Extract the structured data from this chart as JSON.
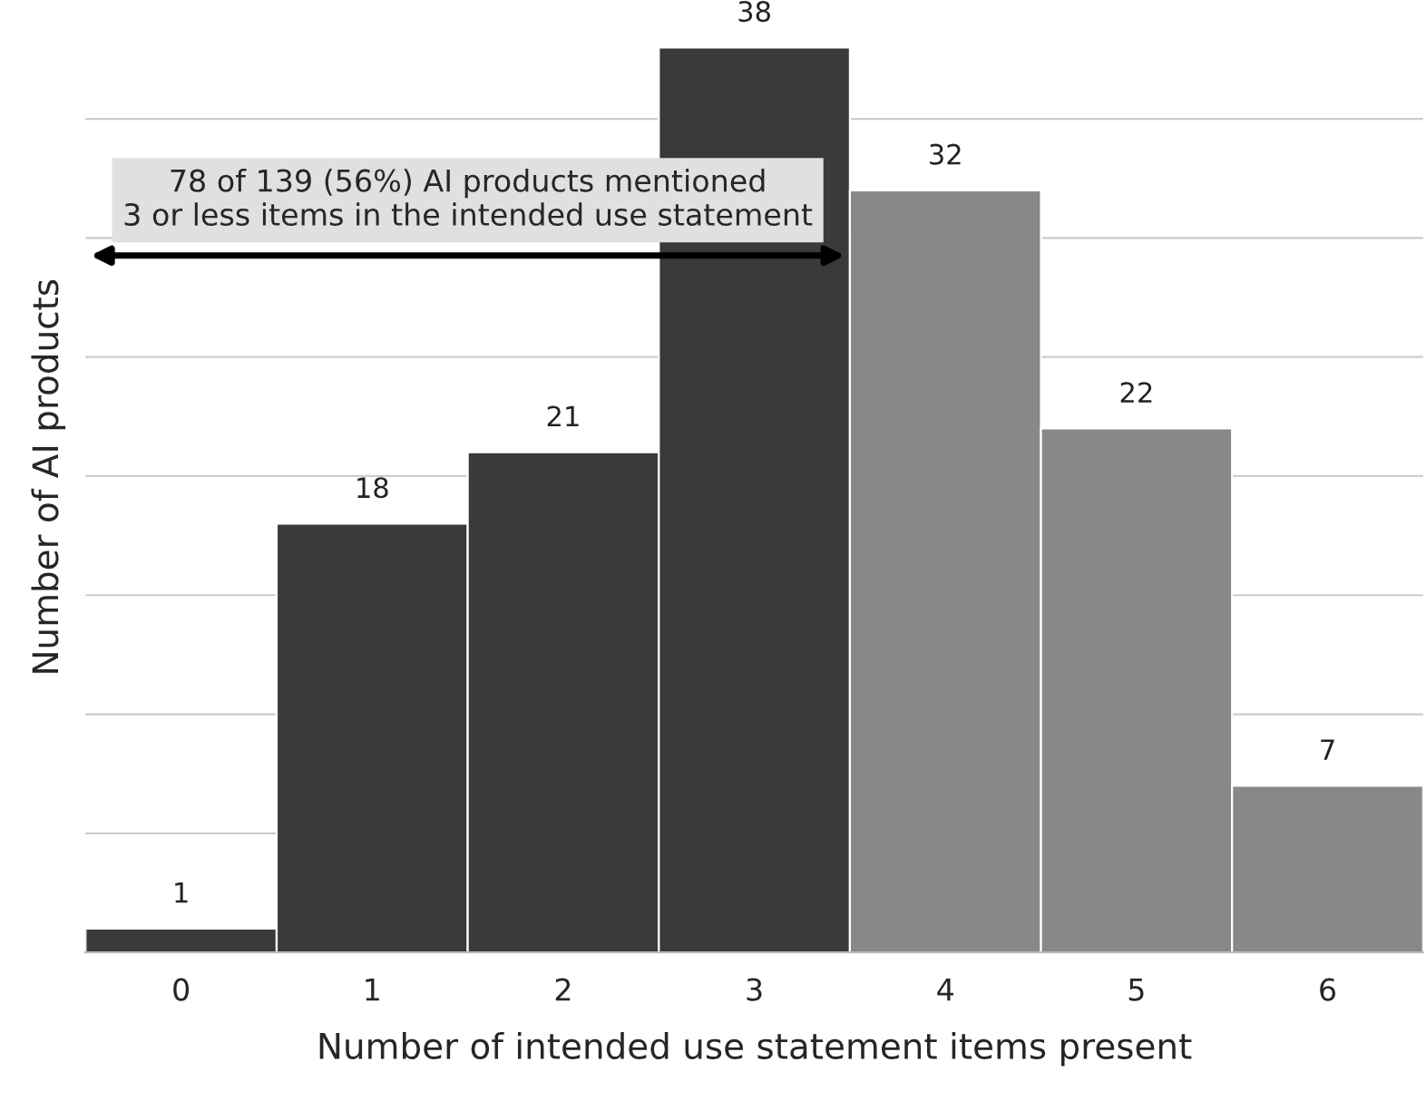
{
  "chart_data": {
    "type": "bar",
    "xlabel": "Number of intended use statement items present",
    "ylabel": "Number of AI products",
    "categories": [
      "0",
      "1",
      "2",
      "3",
      "4",
      "5",
      "6"
    ],
    "values": [
      1,
      18,
      21,
      38,
      32,
      22,
      7
    ],
    "colors": [
      "#3a3a3a",
      "#3a3a3a",
      "#3a3a3a",
      "#3a3a3a",
      "#888888",
      "#888888",
      "#888888"
    ],
    "yticks": [
      {
        "value": 0,
        "label": null
      },
      {
        "value": 5,
        "label": null
      },
      {
        "value": 10,
        "label": null
      },
      {
        "value": 15,
        "label": null
      },
      {
        "value": 20,
        "label": null
      },
      {
        "value": 25,
        "label": null
      },
      {
        "value": 30,
        "label": null
      },
      {
        "value": 35,
        "label": null
      }
    ],
    "tick_labels": "x",
    "grid": "y",
    "data_labels": true,
    "annotations": [
      "78 of 139 (56%) AI products mentioned\n3 or less items in the intended use statement"
    ]
  }
}
